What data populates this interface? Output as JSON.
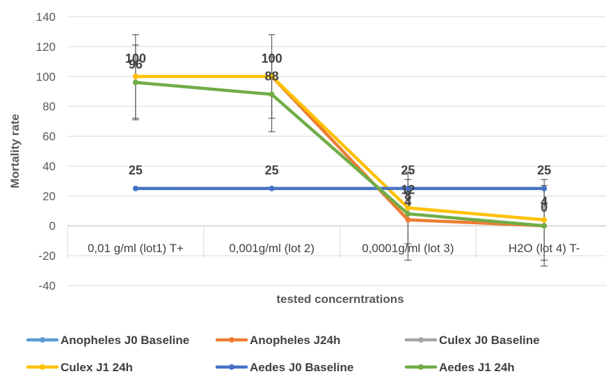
{
  "chart_data": {
    "type": "line",
    "title": "",
    "xlabel": "tested concerntrations",
    "ylabel": "Mortality rate",
    "ylim": [
      -40,
      140
    ],
    "yticks": [
      -40,
      -20,
      0,
      20,
      40,
      60,
      80,
      100,
      120,
      140
    ],
    "grid": true,
    "legend_position": "bottom",
    "categories": [
      "0,01 g/ml (lot1) T+",
      "0,001g/ml (lot 2)",
      "0,0001g/ml (lot 3)",
      "H2O (lot 4) T-"
    ],
    "series": [
      {
        "name": "Anopheles J0 Baseline",
        "color": "#5B9BD5",
        "values": [
          null,
          null,
          null,
          null
        ],
        "labels": [
          null,
          null,
          null,
          null
        ]
      },
      {
        "name": "Anopheles J24h",
        "color": "#ED7D31",
        "values": [
          100,
          100,
          4,
          0
        ],
        "labels": [
          null,
          null,
          "4",
          null
        ]
      },
      {
        "name": "Culex J0 Baseline",
        "color": "#A5A5A5",
        "values": [
          null,
          null,
          null,
          null
        ],
        "labels": [
          null,
          null,
          null,
          null
        ]
      },
      {
        "name": "Culex J1 24h",
        "color": "#FFC000",
        "values": [
          100,
          100,
          12,
          4
        ],
        "labels": [
          "100",
          "100",
          "12",
          "4"
        ]
      },
      {
        "name": "Aedes J0 Baseline",
        "color": "#4472C4",
        "values": [
          25,
          25,
          25,
          25
        ],
        "labels": [
          "25",
          "25",
          "25",
          "25"
        ]
      },
      {
        "name": "Aedes J1 24h",
        "color": "#70AD47",
        "values": [
          96,
          88,
          8,
          0
        ],
        "labels": [
          "96",
          "88",
          "8",
          "0"
        ]
      }
    ],
    "error_bars": [
      {
        "category": "0,01 g/ml (lot1) T+",
        "center": 100,
        "plus_minus": 28
      },
      {
        "category": "0,01 g/ml (lot1) T+",
        "center": 96,
        "plus_minus": 25
      },
      {
        "category": "0,001g/ml (lot 2)",
        "center": 100,
        "plus_minus": 28
      },
      {
        "category": "0,001g/ml (lot 2)",
        "center": 88,
        "plus_minus": 25
      },
      {
        "category": "0,0001g/ml (lot 3)",
        "center": 12,
        "plus_minus": 24
      },
      {
        "category": "0,0001g/ml (lot 3)",
        "center": 4,
        "plus_minus": 27
      },
      {
        "category": "H2O (lot 4) T-",
        "center": 4,
        "plus_minus": 27
      },
      {
        "category": "H2O (lot 4) T-",
        "center": 0,
        "plus_minus": 27
      }
    ]
  }
}
